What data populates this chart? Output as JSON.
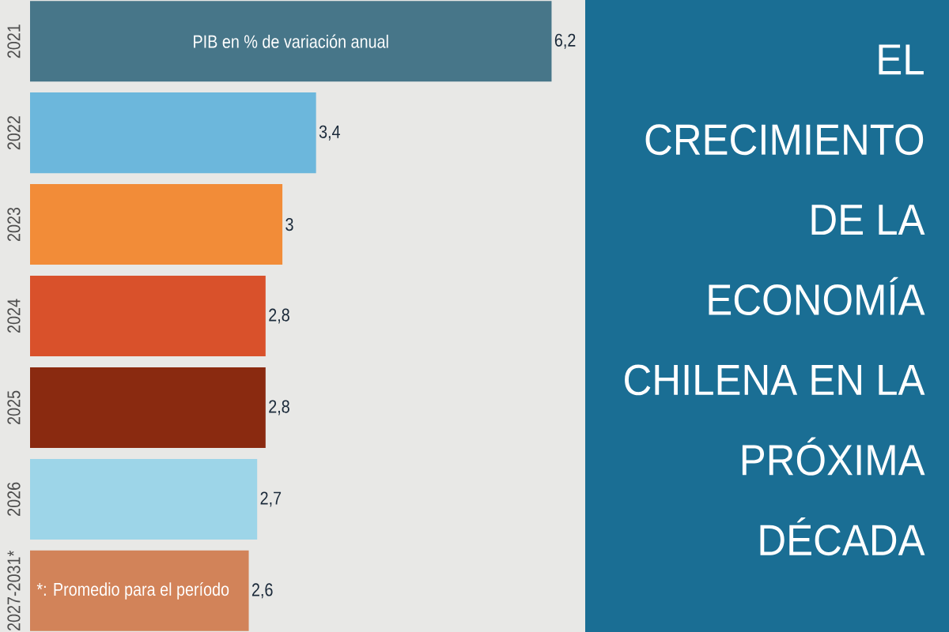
{
  "chart_data": {
    "type": "bar",
    "orientation": "horizontal",
    "title": "EL CRECIMIENTO DE LA ECONOMÍA CHILENA EN LA PRÓXIMA DÉCADA",
    "subtitle": "PIB en % de variación anual",
    "annotations": [
      "*: Promedio para el período"
    ],
    "categories": [
      "2021",
      "2022",
      "2023",
      "2024",
      "2025",
      "2026",
      "2027-2031*"
    ],
    "values": [
      6.2,
      3.4,
      3,
      2.8,
      2.8,
      2.7,
      2.6
    ],
    "value_labels": [
      "6,2",
      "3,4",
      "3",
      "2,8",
      "2,8",
      "2,7",
      "2,6"
    ],
    "colors": [
      "#477689",
      "#6cb7dc",
      "#f28c38",
      "#d9512b",
      "#8a2a10",
      "#9dd5e8",
      "#d28359"
    ],
    "xlim": [
      0,
      6.6
    ],
    "tick_labels": "y"
  }
}
